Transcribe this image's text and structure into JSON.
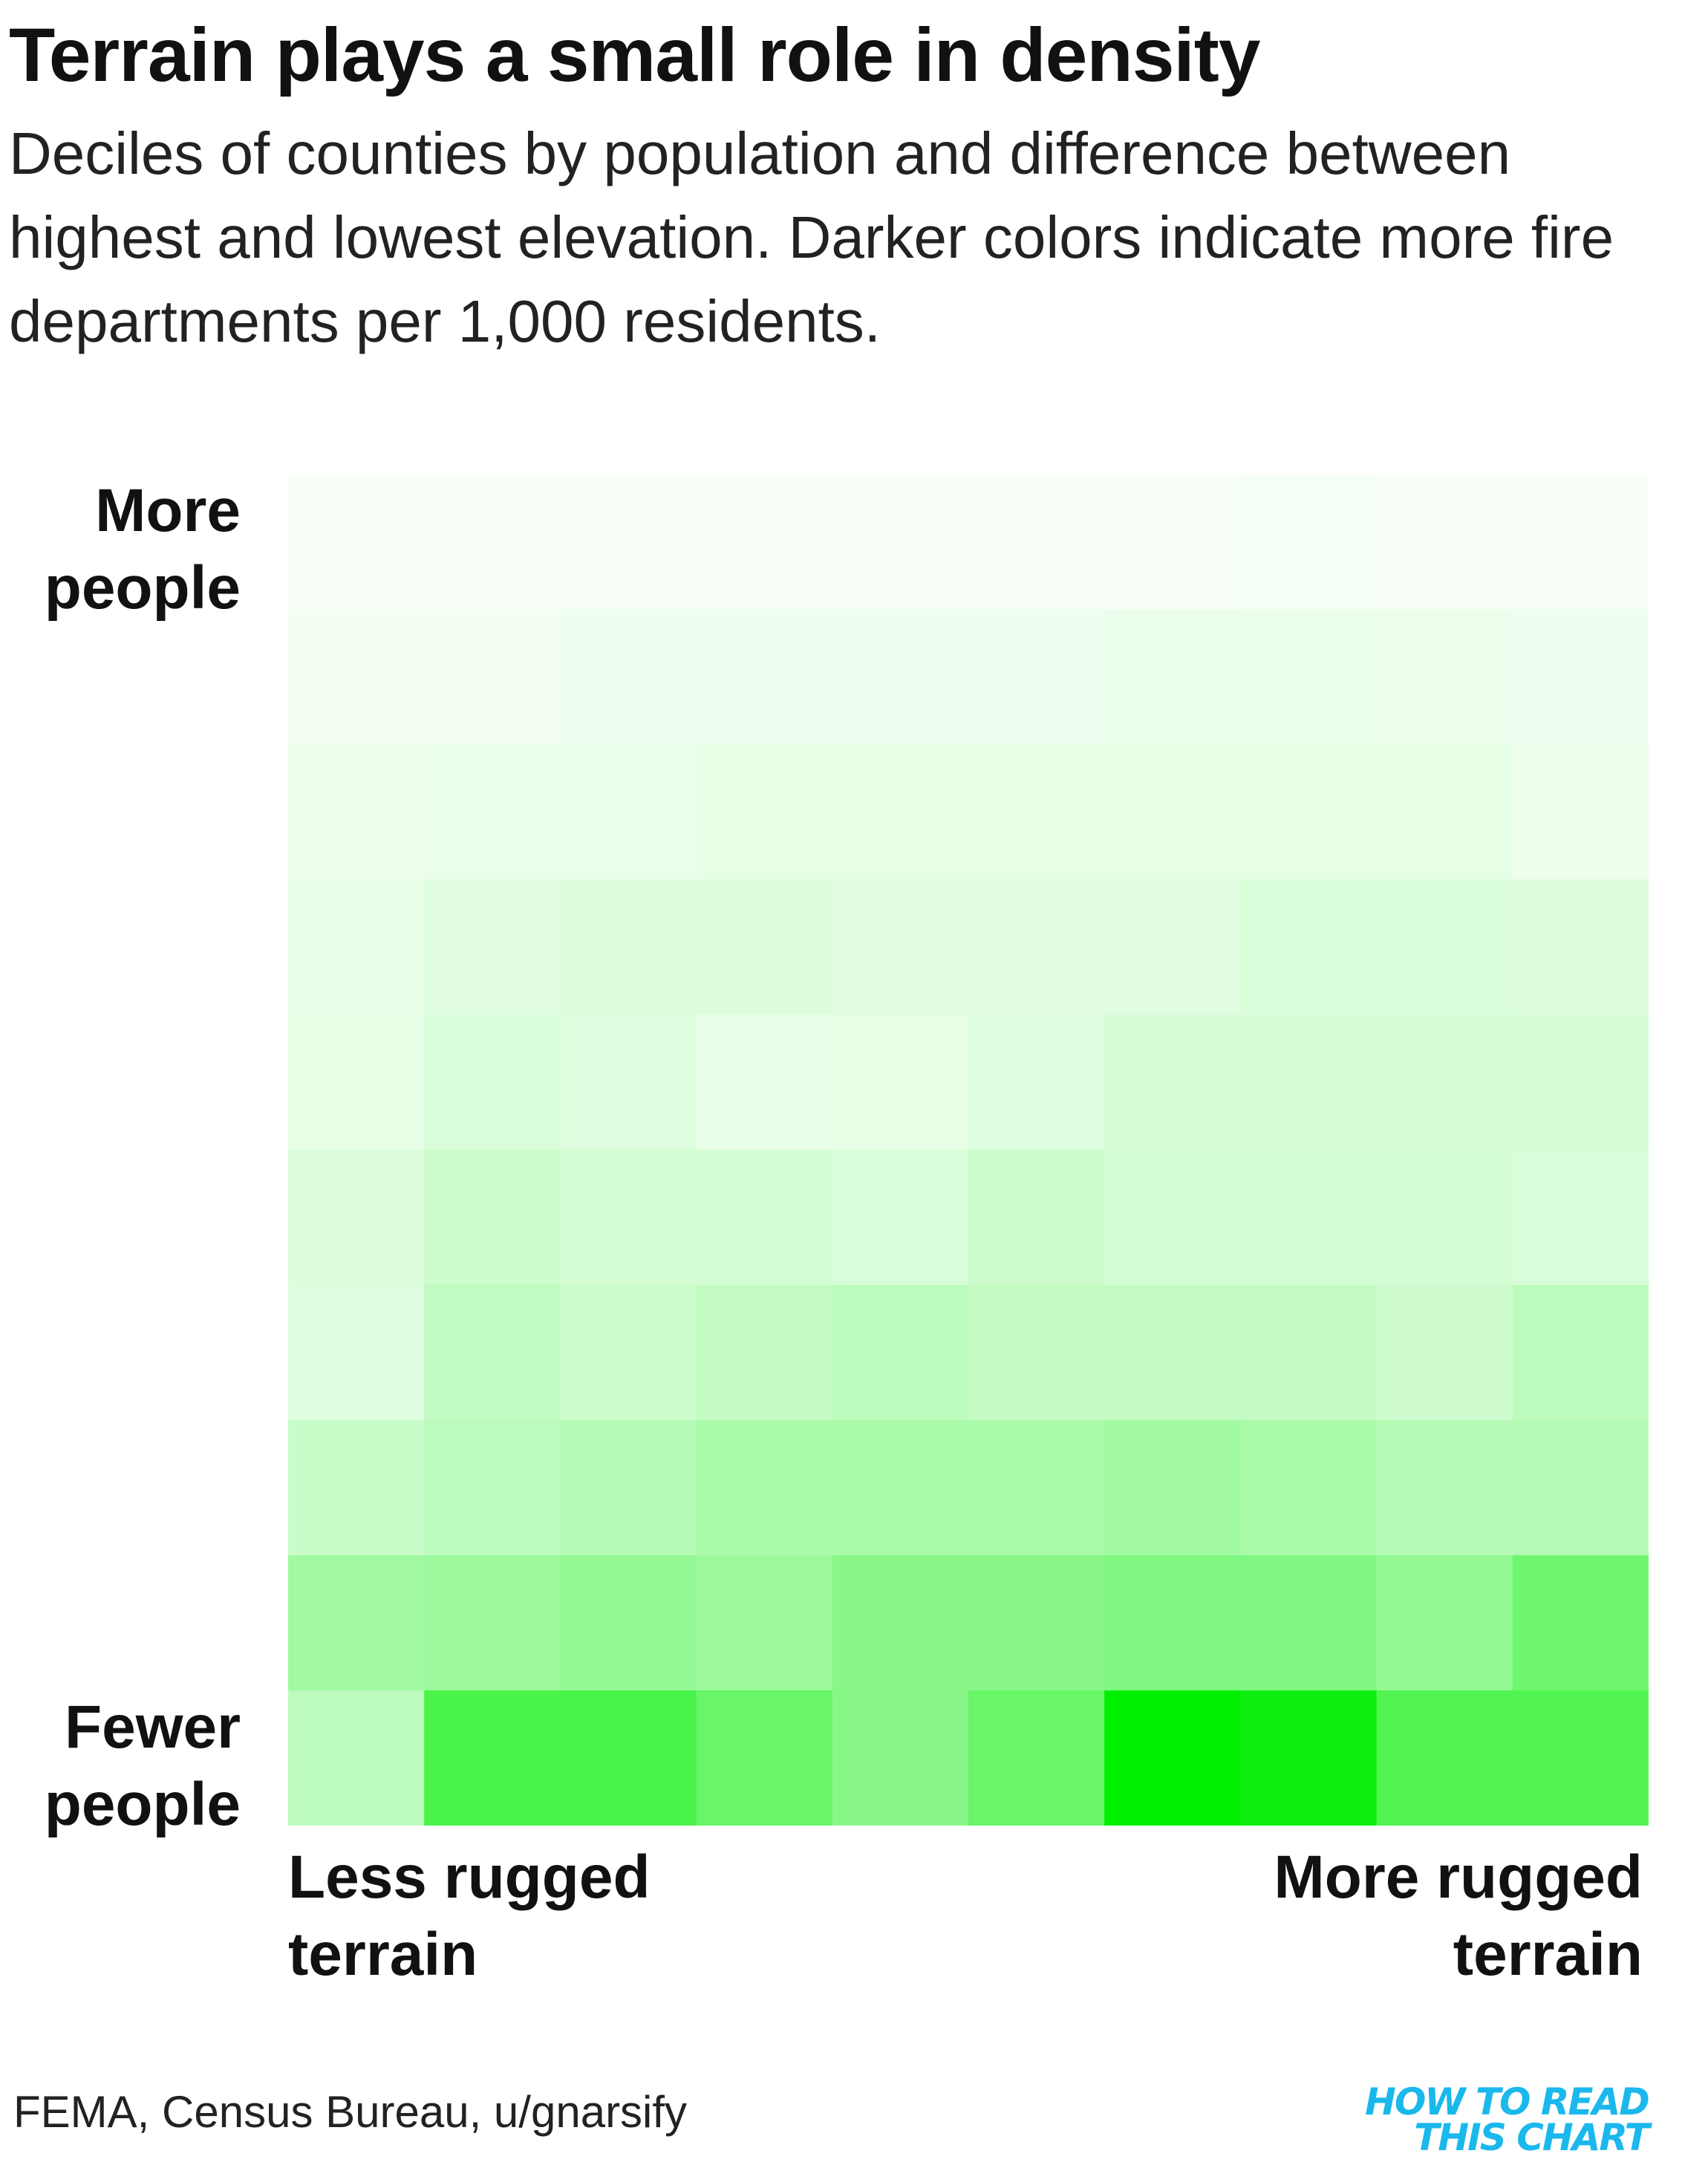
{
  "title": "Terrain plays a small role in density",
  "subtitle": "Deciles of counties by population and difference between highest and lowest elevation. Darker colors indicate more fire departments per 1,000 residents.",
  "source": "FEMA, Census Bureau, u/gnarsify",
  "logo": {
    "line1": "HOW TO READ",
    "line2": "THIS CHART"
  },
  "colors": {
    "low": "#f7fff7",
    "high": "#00ee00",
    "logo": "#1ab8ec"
  },
  "chart_data": {
    "type": "heatmap",
    "ylabel_top": "More people",
    "ylabel_bottom": "Fewer people",
    "xlabel_left": "Less rugged terrain",
    "xlabel_right": "More rugged terrain",
    "rows_order": "top row = most people, bottom row = fewest people",
    "cols_order": "left column = least rugged, right column = most rugged",
    "value_scale": "relative darkness 0 (lightest) to 1 (darkest)",
    "values": [
      [
        0.0,
        0.0,
        0.0,
        0.0,
        0.0,
        0.0,
        0.0,
        0.01,
        0.0,
        0.0
      ],
      [
        0.02,
        0.02,
        0.03,
        0.03,
        0.03,
        0.03,
        0.05,
        0.05,
        0.04,
        0.03
      ],
      [
        0.04,
        0.05,
        0.05,
        0.07,
        0.07,
        0.07,
        0.07,
        0.07,
        0.07,
        0.04
      ],
      [
        0.06,
        0.09,
        0.11,
        0.11,
        0.09,
        0.09,
        0.09,
        0.12,
        0.12,
        0.11
      ],
      [
        0.07,
        0.12,
        0.1,
        0.06,
        0.07,
        0.1,
        0.13,
        0.13,
        0.13,
        0.13
      ],
      [
        0.11,
        0.17,
        0.14,
        0.14,
        0.12,
        0.17,
        0.14,
        0.14,
        0.14,
        0.12
      ],
      [
        0.1,
        0.22,
        0.17,
        0.21,
        0.24,
        0.21,
        0.21,
        0.21,
        0.16,
        0.24
      ],
      [
        0.19,
        0.24,
        0.27,
        0.31,
        0.31,
        0.31,
        0.35,
        0.31,
        0.27,
        0.27
      ],
      [
        0.35,
        0.37,
        0.4,
        0.37,
        0.45,
        0.45,
        0.48,
        0.48,
        0.4,
        0.55
      ],
      [
        0.24,
        0.7,
        0.7,
        0.58,
        0.45,
        0.58,
        1.0,
        0.94,
        0.67,
        0.67
      ]
    ]
  }
}
